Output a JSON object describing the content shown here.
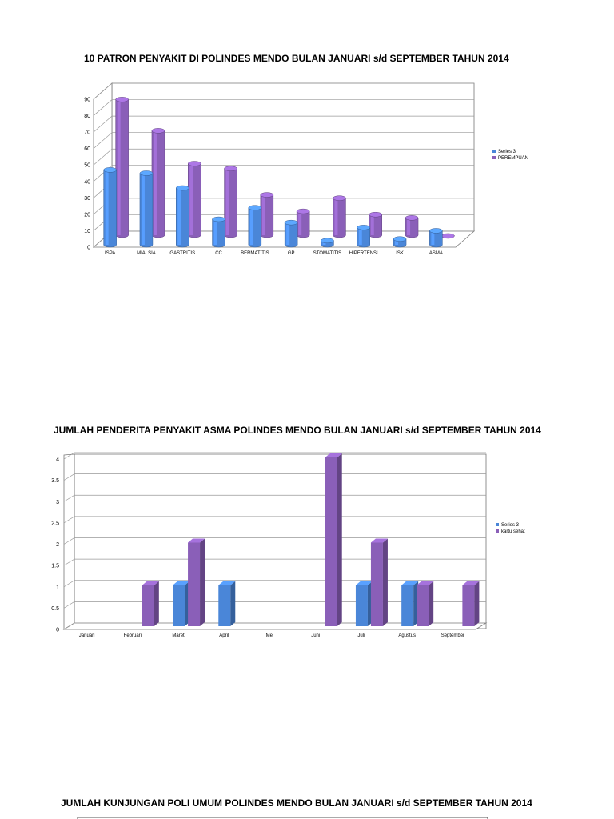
{
  "page": {
    "chart_titles": [
      "10 PATRON PENYAKIT DI POLINDES MENDO BULAN JANUARI s/d SEPTEMBER TAHUN 2014",
      "JUMLAH PENDERITA PENYAKIT ASMA POLINDES MENDO BULAN JANUARI s/d SEPTEMBER TAHUN 2014",
      "JUMLAH KUNJUNGAN POLI UMUM POLINDES MENDO BULAN JANUARI s/d SEPTEMBER TAHUN 2014"
    ]
  },
  "chart_data": [
    {
      "type": "bar",
      "title": "10 PATRON PENYAKIT DI POLINDES MENDO BULAN JANUARI s/d SEPTEMBER TAHUN 2014",
      "categories": [
        "ISPA",
        "MIALSIA",
        "GASTRITIS",
        "CC",
        "BERMATITIS",
        "GP",
        "STOMATITIS",
        "HIPERTENSI",
        "ISK",
        "ASMA"
      ],
      "series": [
        {
          "name": "Series 3",
          "color": "#4a86d8",
          "values": [
            47,
            45,
            36,
            17,
            24,
            15,
            4,
            12,
            5,
            10
          ]
        },
        {
          "name": "PEREMPUAN",
          "color": "#8a5fb8",
          "values": [
            84,
            65,
            45,
            42,
            26,
            16,
            24,
            14,
            12,
            1
          ]
        }
      ],
      "ylim": [
        0,
        90
      ],
      "yticks": [
        0,
        10,
        20,
        30,
        40,
        50,
        60,
        70,
        80,
        90
      ],
      "legend": "right",
      "grid": true
    },
    {
      "type": "bar",
      "title": "JUMLAH PENDERITA PENYAKIT ASMA POLINDES MENDO BULAN JANUARI s/d SEPTEMBER TAHUN 2014",
      "categories": [
        "Januari",
        "Februari",
        "Maret",
        "April",
        "Mei",
        "Juni",
        "Juli",
        "Agustus",
        "September"
      ],
      "series": [
        {
          "name": "Series 3",
          "color": "#4a86d8",
          "values": [
            0,
            0,
            1,
            1,
            0,
            0,
            1,
            1,
            0
          ]
        },
        {
          "name": "kartu sehat",
          "color": "#8a5fb8",
          "values": [
            0,
            1,
            2,
            0,
            0,
            4,
            2,
            1,
            1
          ]
        }
      ],
      "ylim": [
        0,
        4
      ],
      "yticks": [
        "0",
        "0.5",
        "1",
        "1.5",
        "2",
        "2.5",
        "3",
        "3.5",
        "4"
      ],
      "legend": "right",
      "grid": true
    }
  ]
}
